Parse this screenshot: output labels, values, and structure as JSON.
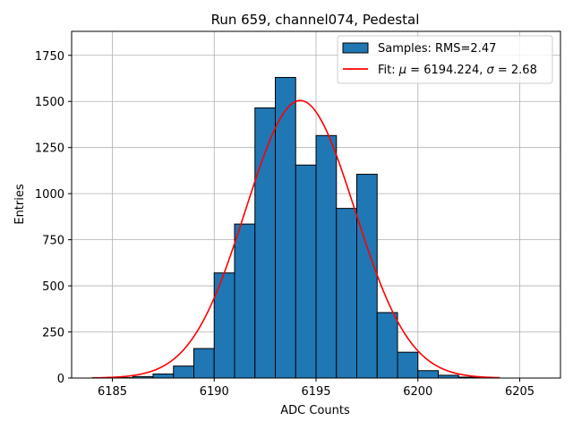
{
  "chart_data": {
    "type": "bar",
    "title": "Run 659, channel074, Pedestal",
    "xlabel": "ADC Counts",
    "ylabel": "Entries",
    "xlim": [
      6183,
      6207
    ],
    "ylim": [
      0,
      1880
    ],
    "xticks": [
      6185,
      6190,
      6195,
      6200,
      6205
    ],
    "yticks": [
      0,
      250,
      500,
      750,
      1000,
      1250,
      1500,
      1750
    ],
    "grid": true,
    "legend_position": "top-right",
    "bar_color": "#1f77b4",
    "bar_edge_color": "#000000",
    "fit_color": "#ff0000",
    "histogram": {
      "name": "Samples: RMS=2.47",
      "bin_width": 1,
      "bin_starts": [
        6185,
        6186,
        6187,
        6188,
        6189,
        6190,
        6191,
        6192,
        6193,
        6194,
        6195,
        6196,
        6197,
        6198,
        6199,
        6200,
        6201,
        6202,
        6203
      ],
      "counts": [
        2,
        8,
        22,
        65,
        160,
        570,
        835,
        1465,
        1630,
        1155,
        1315,
        920,
        1105,
        355,
        140,
        40,
        15,
        5,
        2
      ]
    },
    "fit": {
      "name_prefix": "Fit: ",
      "name_mu_symbol": "μ",
      "name_mu_text": " = 6194.224, ",
      "name_sigma_symbol": "σ",
      "name_sigma_text": " = 2.68",
      "mu": 6194.224,
      "sigma": 2.68,
      "amplitude": 1505,
      "x_range": [
        6184,
        6204
      ]
    }
  }
}
